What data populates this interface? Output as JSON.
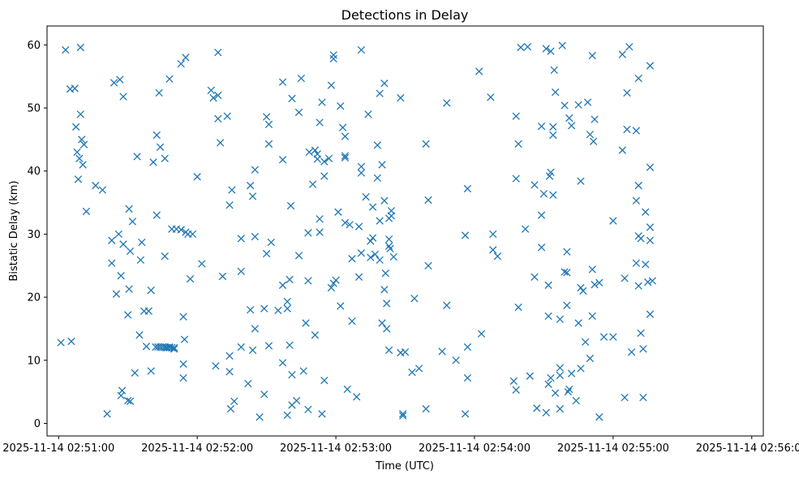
{
  "chart_data": {
    "type": "scatter",
    "title": "Detections in Delay",
    "xlabel": "Time (UTC)",
    "ylabel": "Bistatic Delay (km)",
    "marker": "x",
    "color": "#1f77b4",
    "grid": false,
    "x_unit": "seconds after 2025-11-14 02:51:00",
    "xlim": [
      -5,
      305
    ],
    "ylim": [
      -2,
      63
    ],
    "x_ticks": [
      {
        "value": 0,
        "label": "2025-11-14 02:51:00"
      },
      {
        "value": 60,
        "label": "2025-11-14 02:52:00"
      },
      {
        "value": 120,
        "label": "2025-11-14 02:53:00"
      },
      {
        "value": 180,
        "label": "2025-11-14 02:54:00"
      },
      {
        "value": 240,
        "label": "2025-11-14 02:55:00"
      },
      {
        "value": 300,
        "label": "2025-11-14 02:56:00"
      }
    ],
    "y_ticks": [
      {
        "value": 0,
        "label": "0"
      },
      {
        "value": 10,
        "label": "10"
      },
      {
        "value": 20,
        "label": "20"
      },
      {
        "value": 30,
        "label": "30"
      },
      {
        "value": 40,
        "label": "40"
      },
      {
        "value": 50,
        "label": "50"
      },
      {
        "value": 60,
        "label": "60"
      }
    ],
    "points": [
      [
        1,
        12.8
      ],
      [
        3,
        59.2
      ],
      [
        5,
        53
      ],
      [
        5.5,
        13
      ],
      [
        7,
        53.1
      ],
      [
        7.5,
        47
      ],
      [
        8,
        43
      ],
      [
        8.5,
        38.7
      ],
      [
        9,
        42
      ],
      [
        9.5,
        59.6
      ],
      [
        9.5,
        49
      ],
      [
        10,
        45
      ],
      [
        10.5,
        41
      ],
      [
        11,
        44.2
      ],
      [
        12,
        33.6
      ],
      [
        16,
        37.7
      ],
      [
        19,
        37
      ],
      [
        21,
        1.5
      ],
      [
        23,
        29
      ],
      [
        23,
        25.4
      ],
      [
        24,
        54
      ],
      [
        25,
        20.5
      ],
      [
        26,
        30
      ],
      [
        26.5,
        54.5
      ],
      [
        27,
        23.4
      ],
      [
        27,
        4.4
      ],
      [
        27.5,
        5.2
      ],
      [
        28,
        51.8
      ],
      [
        28,
        28.4
      ],
      [
        30,
        17.2
      ],
      [
        30,
        3.6
      ],
      [
        30.5,
        34
      ],
      [
        30.5,
        21.3
      ],
      [
        31,
        27.3
      ],
      [
        31,
        3.5
      ],
      [
        32,
        32
      ],
      [
        33,
        8
      ],
      [
        34,
        42.3
      ],
      [
        35,
        14
      ],
      [
        35.5,
        25.9
      ],
      [
        36,
        28.7
      ],
      [
        37,
        17.8
      ],
      [
        38,
        12.2
      ],
      [
        39,
        17.8
      ],
      [
        40,
        21.1
      ],
      [
        40,
        8.3
      ],
      [
        41,
        41.4
      ],
      [
        42,
        12.1
      ],
      [
        42.5,
        45.7
      ],
      [
        42.5,
        33
      ],
      [
        43,
        12.1
      ],
      [
        43.5,
        52.4
      ],
      [
        44,
        43.8
      ],
      [
        44,
        12.1
      ],
      [
        45,
        12.1
      ],
      [
        46,
        12.1
      ],
      [
        46,
        42
      ],
      [
        46,
        26.5
      ],
      [
        46.5,
        12
      ],
      [
        47,
        12
      ],
      [
        48,
        12
      ],
      [
        48,
        54.6
      ],
      [
        48,
        12.1
      ],
      [
        49,
        12
      ],
      [
        49,
        30.8
      ],
      [
        50,
        11.8
      ],
      [
        50,
        12
      ],
      [
        51,
        30.8
      ],
      [
        53,
        30.7
      ],
      [
        53,
        57
      ],
      [
        54,
        16.9
      ],
      [
        54,
        9.4
      ],
      [
        54,
        7.2
      ],
      [
        54.5,
        13.3
      ],
      [
        55,
        58
      ],
      [
        55,
        30.3
      ],
      [
        56,
        30
      ],
      [
        57,
        22.9
      ],
      [
        58,
        30
      ],
      [
        60,
        39.1
      ],
      [
        62,
        25.3
      ],
      [
        66,
        52.8
      ],
      [
        67,
        51.6
      ],
      [
        68,
        9.1
      ],
      [
        69,
        58.8
      ],
      [
        69,
        52
      ],
      [
        69,
        48.3
      ],
      [
        70,
        44.5
      ],
      [
        71,
        23.3
      ],
      [
        73,
        48.7
      ],
      [
        74,
        34.6
      ],
      [
        74,
        10.7
      ],
      [
        74,
        8.2
      ],
      [
        74.5,
        2.3
      ],
      [
        75,
        37
      ],
      [
        76,
        3.5
      ],
      [
        79,
        12.1
      ],
      [
        79,
        24.1
      ],
      [
        79,
        29.3
      ],
      [
        82,
        6.3
      ],
      [
        83,
        37.7
      ],
      [
        83,
        18
      ],
      [
        84,
        36
      ],
      [
        84,
        11.6
      ],
      [
        85,
        40.2
      ],
      [
        85,
        29.6
      ],
      [
        85,
        15
      ],
      [
        87,
        1
      ],
      [
        89,
        18.2
      ],
      [
        89,
        4.6
      ],
      [
        90,
        26.9
      ],
      [
        90,
        48.6
      ],
      [
        91,
        44.3
      ],
      [
        91,
        47.4
      ],
      [
        91,
        12.3
      ],
      [
        92,
        28.7
      ],
      [
        95,
        17.9
      ],
      [
        97,
        54.1
      ],
      [
        97,
        41.8
      ],
      [
        97,
        21.9
      ],
      [
        97,
        9.6
      ],
      [
        99,
        18.2
      ],
      [
        99,
        1.3
      ],
      [
        99,
        19.3
      ],
      [
        100,
        22.8
      ],
      [
        100,
        12.4
      ],
      [
        100.5,
        34.5
      ],
      [
        101,
        51.5
      ],
      [
        101,
        7.7
      ],
      [
        101,
        2.9
      ],
      [
        103,
        3.6
      ],
      [
        104,
        49.3
      ],
      [
        104,
        26.6
      ],
      [
        105,
        54.7
      ],
      [
        106,
        8.3
      ],
      [
        107,
        15.9
      ],
      [
        108,
        30.2
      ],
      [
        108,
        2.2
      ],
      [
        108,
        22.6
      ],
      [
        108.5,
        43
      ],
      [
        110,
        37.9
      ],
      [
        111,
        43.3
      ],
      [
        111,
        14
      ],
      [
        112,
        42.7
      ],
      [
        112,
        41.9
      ],
      [
        113,
        47.7
      ],
      [
        113,
        32.4
      ],
      [
        113,
        30.3
      ],
      [
        114,
        50.9
      ],
      [
        114,
        1.5
      ],
      [
        115,
        41.5
      ],
      [
        115,
        6.8
      ],
      [
        115,
        39.2
      ],
      [
        117,
        42
      ],
      [
        118,
        53.6
      ],
      [
        118,
        21.5
      ],
      [
        119,
        58.4
      ],
      [
        119,
        57.8
      ],
      [
        119,
        22.2
      ],
      [
        120,
        22.7
      ],
      [
        121,
        33.5
      ],
      [
        122,
        50.3
      ],
      [
        122,
        18.6
      ],
      [
        123,
        46.9
      ],
      [
        124,
        45.5
      ],
      [
        124,
        42.4
      ],
      [
        124,
        42.1
      ],
      [
        124,
        31.8
      ],
      [
        125,
        5.4
      ],
      [
        126,
        31.5
      ],
      [
        127,
        16.2
      ],
      [
        127,
        26.1
      ],
      [
        129,
        4.2
      ],
      [
        130,
        31.2
      ],
      [
        130,
        23.2
      ],
      [
        131,
        59.2
      ],
      [
        131,
        40.7
      ],
      [
        131,
        39.7
      ],
      [
        131,
        27
      ],
      [
        133,
        35.9
      ],
      [
        134,
        49
      ],
      [
        135,
        28.9
      ],
      [
        135,
        26.3
      ],
      [
        136,
        29.4
      ],
      [
        136,
        34.3
      ],
      [
        137,
        26.8
      ],
      [
        138,
        44.1
      ],
      [
        138,
        38.9
      ],
      [
        139,
        32.1
      ],
      [
        139,
        25.9
      ],
      [
        139,
        52.3
      ],
      [
        140,
        41
      ],
      [
        140,
        15.9
      ],
      [
        141,
        35.3
      ],
      [
        141,
        21.2
      ],
      [
        141,
        53.9
      ],
      [
        141.5,
        23.8
      ],
      [
        142,
        19
      ],
      [
        142,
        15
      ],
      [
        143,
        29.2
      ],
      [
        143,
        28.1
      ],
      [
        143,
        32.5
      ],
      [
        143,
        11.6
      ],
      [
        143.5,
        27.7
      ],
      [
        144,
        33.7
      ],
      [
        144,
        32.9
      ],
      [
        145,
        26.4
      ],
      [
        148,
        51.6
      ],
      [
        148,
        11.2
      ],
      [
        149,
        1.2
      ],
      [
        149,
        1.5
      ],
      [
        150,
        11.3
      ],
      [
        153,
        8.1
      ],
      [
        154,
        19.8
      ],
      [
        156,
        8.7
      ],
      [
        159,
        44.3
      ],
      [
        159,
        2.3
      ],
      [
        160,
        35.4
      ],
      [
        160,
        25
      ],
      [
        166,
        11.4
      ],
      [
        168,
        50.8
      ],
      [
        168,
        18.7
      ],
      [
        172,
        10
      ],
      [
        176,
        29.8
      ],
      [
        176,
        1.5
      ],
      [
        177,
        37.2
      ],
      [
        177,
        12.1
      ],
      [
        177,
        7.2
      ],
      [
        182,
        55.8
      ],
      [
        183,
        14.2
      ],
      [
        187,
        51.7
      ],
      [
        188,
        27.5
      ],
      [
        188,
        30
      ],
      [
        190,
        26.5
      ],
      [
        197,
        6.7
      ],
      [
        198,
        38.8
      ],
      [
        198,
        48.7
      ],
      [
        198,
        5.3
      ],
      [
        199,
        18.4
      ],
      [
        199,
        44.3
      ],
      [
        200,
        59.6
      ],
      [
        202,
        30.8
      ],
      [
        203,
        59.7
      ],
      [
        204,
        7.5
      ],
      [
        206,
        37.8
      ],
      [
        206,
        23.2
      ],
      [
        207,
        2.4
      ],
      [
        209,
        47.1
      ],
      [
        209,
        33
      ],
      [
        209,
        27.9
      ],
      [
        210,
        36.4
      ],
      [
        211,
        1.7
      ],
      [
        211,
        59.4
      ],
      [
        212,
        21.9
      ],
      [
        212,
        6.2
      ],
      [
        212,
        17
      ],
      [
        212.5,
        39.2
      ],
      [
        213,
        39.8
      ],
      [
        213,
        7.2
      ],
      [
        213,
        59
      ],
      [
        214,
        47
      ],
      [
        214,
        45.7
      ],
      [
        214,
        36.2
      ],
      [
        214.5,
        56
      ],
      [
        215,
        52.5
      ],
      [
        215,
        4.8
      ],
      [
        217,
        16.5
      ],
      [
        217,
        2.3
      ],
      [
        217,
        8.8
      ],
      [
        217,
        7.6
      ],
      [
        218,
        59.9
      ],
      [
        219,
        50.4
      ],
      [
        219,
        24
      ],
      [
        220,
        27.2
      ],
      [
        220,
        18.7
      ],
      [
        220,
        23.9
      ],
      [
        220.5,
        5
      ],
      [
        221,
        5.4
      ],
      [
        221,
        48.4
      ],
      [
        222,
        47.2
      ],
      [
        222,
        7.9
      ],
      [
        224,
        3.6
      ],
      [
        225,
        50.5
      ],
      [
        225,
        15.9
      ],
      [
        226,
        38.4
      ],
      [
        226,
        21.5
      ],
      [
        226,
        8.7
      ],
      [
        227,
        21
      ],
      [
        228,
        12.9
      ],
      [
        229,
        50.9
      ],
      [
        230,
        10.3
      ],
      [
        230,
        45.8
      ],
      [
        231,
        58.3
      ],
      [
        231,
        24.4
      ],
      [
        231,
        17
      ],
      [
        231.5,
        44.7
      ],
      [
        232,
        48.2
      ],
      [
        232,
        22
      ],
      [
        234,
        22.3
      ],
      [
        234,
        1
      ],
      [
        236,
        13.7
      ],
      [
        240,
        13.7
      ],
      [
        240,
        32.1
      ],
      [
        244,
        43.3
      ],
      [
        244,
        58.5
      ],
      [
        245,
        23
      ],
      [
        245,
        4.1
      ],
      [
        246,
        52.4
      ],
      [
        246,
        46.6
      ],
      [
        247,
        59.7
      ],
      [
        248,
        11.3
      ],
      [
        250,
        46.4
      ],
      [
        250,
        35.3
      ],
      [
        250,
        25.4
      ],
      [
        251,
        54.7
      ],
      [
        251,
        37.7
      ],
      [
        251,
        21.8
      ],
      [
        251,
        29.7
      ],
      [
        252,
        14.3
      ],
      [
        252,
        29.3
      ],
      [
        253,
        4.1
      ],
      [
        253,
        11.8
      ],
      [
        254,
        33.5
      ],
      [
        254,
        25.2
      ],
      [
        255,
        22.4
      ],
      [
        256,
        56.7
      ],
      [
        256,
        40.6
      ],
      [
        256,
        31.1
      ],
      [
        256,
        29
      ],
      [
        256,
        17.3
      ],
      [
        257,
        22.6
      ]
    ]
  }
}
